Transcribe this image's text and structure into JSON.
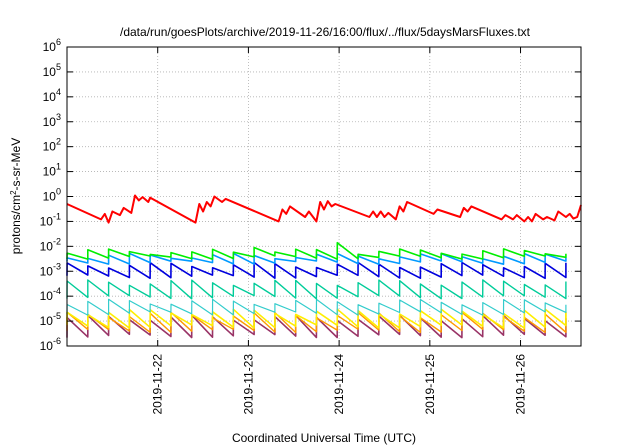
{
  "chart_data": {
    "type": "line",
    "title": "/data/run/goesPlots/archive/2019-11-26/16:00/flux/../flux/5daysMarsFluxes.txt",
    "xlabel": "Coordinated Universal Time (UTC)",
    "ylabel": "protons/cm²-s-sr-MeV",
    "ylabel_parts": {
      "base": "protons/cm",
      "sup": "2",
      "rest": "-s-sr-MeV"
    },
    "y_scale": "log",
    "ylim": [
      1e-06,
      1000000.0
    ],
    "y_ticks": [
      {
        "base": "10",
        "exp": "-6",
        "value": 1e-06
      },
      {
        "base": "10",
        "exp": "-5",
        "value": 1e-05
      },
      {
        "base": "10",
        "exp": "-4",
        "value": 0.0001
      },
      {
        "base": "10",
        "exp": "-3",
        "value": 0.001
      },
      {
        "base": "10",
        "exp": "-2",
        "value": 0.01
      },
      {
        "base": "10",
        "exp": "-1",
        "value": 0.1
      },
      {
        "base": "10",
        "exp": "0",
        "value": 1
      },
      {
        "base": "10",
        "exp": "1",
        "value": 10
      },
      {
        "base": "10",
        "exp": "2",
        "value": 100
      },
      {
        "base": "10",
        "exp": "3",
        "value": 1000
      },
      {
        "base": "10",
        "exp": "4",
        "value": 10000
      },
      {
        "base": "10",
        "exp": "5",
        "value": 100000
      },
      {
        "base": "10",
        "exp": "6",
        "value": 1000000
      }
    ],
    "xlim": [
      "2019-11-21 00:00",
      "2019-11-26 16:00"
    ],
    "x_ticks": [
      "2019-11-22",
      "2019-11-23",
      "2019-11-24",
      "2019-11-25",
      "2019-11-26"
    ],
    "grid": true,
    "series": [
      {
        "color": "#ff0000",
        "width": 2.0,
        "points": [
          [
            "2019-11-21 00:00",
            0.5
          ],
          [
            "2019-11-21 09:00",
            0.12
          ],
          [
            "2019-11-21 10:00",
            0.2
          ],
          [
            "2019-11-21 11:00",
            0.09
          ],
          [
            "2019-11-21 12:00",
            0.25
          ],
          [
            "2019-11-21 14:00",
            0.18
          ],
          [
            "2019-11-21 15:00",
            0.35
          ],
          [
            "2019-11-21 17:00",
            0.22
          ],
          [
            "2019-11-21 18:00",
            1.1
          ],
          [
            "2019-11-21 19:00",
            0.7
          ],
          [
            "2019-11-21 20:00",
            0.95
          ],
          [
            "2019-11-21 21:30",
            0.6
          ],
          [
            "2019-11-21 22:00",
            0.9
          ],
          [
            "2019-11-22 10:00",
            0.09
          ],
          [
            "2019-11-22 11:00",
            0.5
          ],
          [
            "2019-11-22 12:00",
            0.25
          ],
          [
            "2019-11-22 13:00",
            0.6
          ],
          [
            "2019-11-22 14:00",
            0.4
          ],
          [
            "2019-11-22 15:00",
            1.0
          ],
          [
            "2019-11-22 17:00",
            0.6
          ],
          [
            "2019-11-22 18:00",
            0.8
          ],
          [
            "2019-11-23 08:00",
            0.1
          ],
          [
            "2019-11-23 09:00",
            0.3
          ],
          [
            "2019-11-23 10:00",
            0.2
          ],
          [
            "2019-11-23 11:00",
            0.4
          ],
          [
            "2019-11-23 15:00",
            0.15
          ],
          [
            "2019-11-23 16:00",
            0.25
          ],
          [
            "2019-11-23 18:00",
            0.1
          ],
          [
            "2019-11-23 19:00",
            0.6
          ],
          [
            "2019-11-23 20:00",
            0.3
          ],
          [
            "2019-11-23 21:00",
            0.65
          ],
          [
            "2019-11-23 22:00",
            0.4
          ],
          [
            "2019-11-23 23:00",
            0.5
          ],
          [
            "2019-11-24 08:00",
            0.15
          ],
          [
            "2019-11-24 09:00",
            0.25
          ],
          [
            "2019-11-24 10:00",
            0.15
          ],
          [
            "2019-11-24 11:00",
            0.25
          ],
          [
            "2019-11-24 12:00",
            0.15
          ],
          [
            "2019-11-24 13:00",
            0.22
          ],
          [
            "2019-11-24 15:00",
            0.12
          ],
          [
            "2019-11-24 16:00",
            0.4
          ],
          [
            "2019-11-24 17:00",
            0.25
          ],
          [
            "2019-11-24 18:00",
            0.6
          ],
          [
            "2019-11-25 01:00",
            0.2
          ],
          [
            "2019-11-25 02:00",
            0.3
          ],
          [
            "2019-11-25 08:00",
            0.15
          ],
          [
            "2019-11-25 09:00",
            0.35
          ],
          [
            "2019-11-25 10:00",
            0.25
          ],
          [
            "2019-11-25 11:00",
            0.4
          ],
          [
            "2019-11-25 19:00",
            0.12
          ],
          [
            "2019-11-25 20:00",
            0.18
          ],
          [
            "2019-11-25 22:00",
            0.12
          ],
          [
            "2019-11-25 23:00",
            0.18
          ],
          [
            "2019-11-26 01:00",
            0.1
          ],
          [
            "2019-11-26 02:00",
            0.15
          ],
          [
            "2019-11-26 03:00",
            0.1
          ],
          [
            "2019-11-26 04:00",
            0.2
          ],
          [
            "2019-11-26 06:00",
            0.12
          ],
          [
            "2019-11-26 07:00",
            0.15
          ],
          [
            "2019-11-26 09:00",
            0.11
          ],
          [
            "2019-11-26 10:00",
            0.25
          ],
          [
            "2019-11-26 12:00",
            0.15
          ],
          [
            "2019-11-26 13:00",
            0.2
          ],
          [
            "2019-11-26 14:00",
            0.13
          ],
          [
            "2019-11-26 15:00",
            0.15
          ],
          [
            "2019-11-26 16:00",
            0.45
          ]
        ]
      },
      {
        "color": "#00ee00",
        "width": 1.6,
        "base": 0.0035,
        "amp": 1.8,
        "peaks": [
          [
            "2019-11-24 02:00",
            0.014
          ],
          [
            "2019-11-23 00:30",
            0.009
          ],
          [
            "2019-11-22 10:00",
            0.006
          ]
        ]
      },
      {
        "color": "#0099ff",
        "width": 1.6,
        "base": 0.0022,
        "amp": 1.9
      },
      {
        "color": "#0000dd",
        "width": 1.6,
        "base": 0.0006,
        "amp": 3.0
      },
      {
        "color": "#00cc99",
        "width": 1.4,
        "base": 9e-05,
        "amp": 4.0
      },
      {
        "color": "#33cccc",
        "width": 1.2,
        "base": 2e-05,
        "amp": 3.0
      },
      {
        "color": "#ffee00",
        "width": 1.6,
        "base": 6e-06,
        "amp": 4.0
      },
      {
        "color": "#ff9900",
        "width": 1.4,
        "base": 4e-06,
        "amp": 4.5
      },
      {
        "color": "#993366",
        "width": 1.6,
        "base": 2.5e-06,
        "amp": 5.5
      }
    ],
    "sawtooth_period_hours": 5.5
  }
}
